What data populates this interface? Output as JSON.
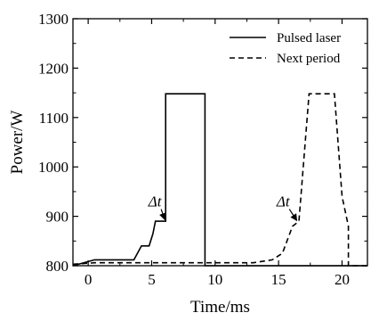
{
  "chart_data": {
    "type": "line",
    "xlabel": "Time/ms",
    "ylabel": "Power/W",
    "xlim": [
      -1.2,
      22
    ],
    "ylim": [
      800,
      1300
    ],
    "xticks": [
      0,
      5,
      10,
      15,
      20
    ],
    "yticks": [
      800,
      900,
      1000,
      1100,
      1200,
      1300
    ],
    "grid": false,
    "legend": "top-right",
    "series": [
      {
        "name": "Pulsed laser",
        "style": "solid",
        "x": [
          -1.2,
          0.5,
          3.6,
          4.2,
          4.8,
          5.1,
          5.3,
          6.1,
          6.1,
          9.2,
          9.2,
          22
        ],
        "y": [
          800,
          812,
          812,
          840,
          840,
          865,
          890,
          890,
          1148,
          1148,
          800,
          800
        ]
      },
      {
        "name": "Next period",
        "style": "dashed",
        "x": [
          -1.2,
          0.5,
          13,
          14.5,
          15.3,
          16.1,
          16.6,
          16.6,
          17.4,
          17.4,
          19.4,
          20.0,
          20.5,
          20.5,
          22
        ],
        "y": [
          803,
          806,
          806,
          812,
          825,
          880,
          890,
          890,
          1148,
          1148,
          1148,
          940,
          880,
          800,
          800
        ]
      }
    ],
    "annotations": [
      {
        "label": "Δt",
        "text_x": 6.1,
        "text_y": 920,
        "arrow_to": [
          6.1,
          890
        ]
      },
      {
        "label": "Δt",
        "text_x": 16.2,
        "text_y": 920,
        "arrow_to": [
          16.5,
          888
        ]
      }
    ]
  }
}
